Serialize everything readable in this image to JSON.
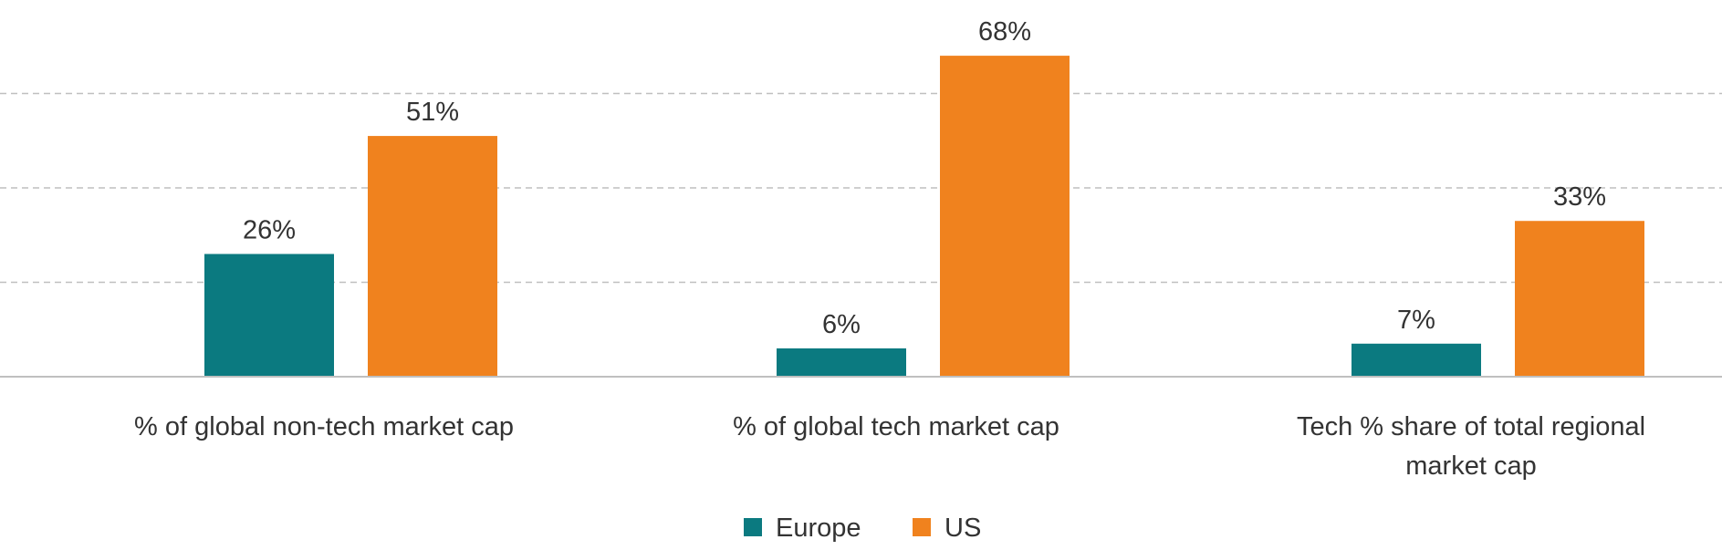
{
  "chart_data": {
    "type": "bar",
    "categories": [
      [
        "% of global non-tech market cap"
      ],
      [
        "% of global tech market cap"
      ],
      [
        "Tech % share of total regional",
        "market cap"
      ]
    ],
    "series": [
      {
        "name": "Europe",
        "color": "#0B7A80",
        "values": [
          26,
          6,
          7
        ],
        "labels": [
          "26%",
          "6%",
          "7%"
        ]
      },
      {
        "name": "US",
        "color": "#F0821E",
        "values": [
          51,
          68,
          33
        ],
        "labels": [
          "51%",
          "68%",
          "33%"
        ]
      }
    ],
    "ylim": [
      0,
      80
    ],
    "gridlines": [
      20,
      40,
      60,
      80
    ],
    "grid": true,
    "grid_style": "dashed",
    "legend_position": "bottom-center",
    "title": "",
    "xlabel": "",
    "ylabel": ""
  }
}
